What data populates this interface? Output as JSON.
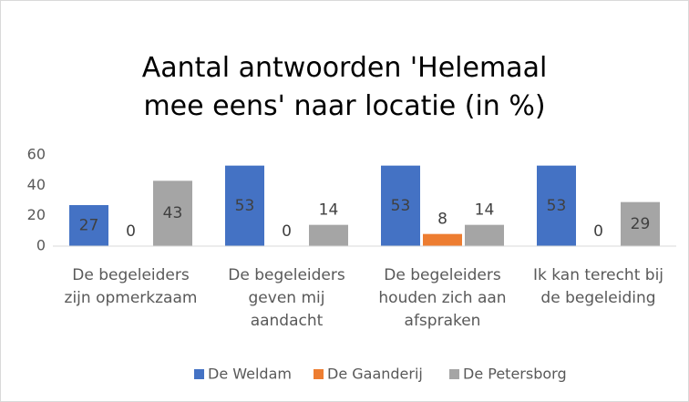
{
  "chart_data": {
    "type": "bar",
    "title": "Aantal antwoorden 'Helemaal\nmee eens' naar locatie (in %)",
    "categories": [
      "De begeleiders\nzijn opmerkzaam",
      "De begeleiders\ngeven mij\naandacht",
      "De begeleiders\nhouden zich aan\nafspraken",
      "Ik kan terecht bij\nde begeleiding"
    ],
    "series": [
      {
        "name": "De Weldam",
        "color": "#4472c4",
        "values": [
          27,
          53,
          53,
          53
        ]
      },
      {
        "name": "De Gaanderij",
        "color": "#ed7d31",
        "values": [
          0,
          0,
          8,
          0
        ]
      },
      {
        "name": "De Petersborg",
        "color": "#a5a5a5",
        "values": [
          43,
          14,
          14,
          29
        ]
      }
    ],
    "ylim": [
      0,
      60
    ],
    "yticks": [
      0,
      20,
      40,
      60
    ],
    "grid": false,
    "legend": "bottom"
  }
}
